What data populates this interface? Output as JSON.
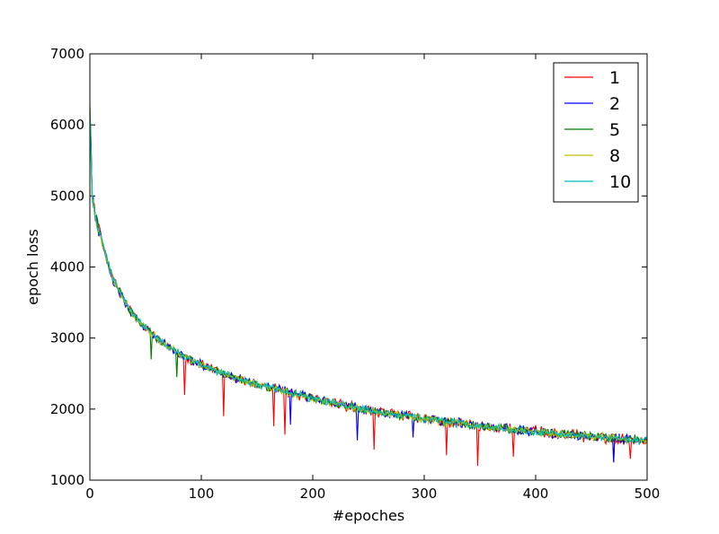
{
  "chart_data": {
    "type": "line",
    "xlabel": "#epoches",
    "ylabel": "epoch loss",
    "xlim": [
      0,
      500
    ],
    "ylim": [
      1000,
      7000
    ],
    "xticks": [
      0,
      100,
      200,
      300,
      400,
      500
    ],
    "yticks": [
      1000,
      2000,
      3000,
      4000,
      5000,
      6000,
      7000
    ],
    "grid": false,
    "legend_position": "top-right",
    "series": [
      {
        "name": "1",
        "color": "#ff0000",
        "x": [
          0,
          2,
          5,
          10,
          20,
          30,
          40,
          50,
          60,
          70,
          80,
          90,
          100,
          125,
          150,
          175,
          200,
          250,
          300,
          350,
          400,
          450,
          500
        ],
        "values": [
          6300,
          5000,
          4700,
          4400,
          3850,
          3550,
          3300,
          3150,
          3000,
          2880,
          2780,
          2700,
          2620,
          2470,
          2350,
          2250,
          2150,
          1980,
          1860,
          1760,
          1680,
          1610,
          1560
        ],
        "noise": 95,
        "dips": [
          [
            85,
            2200
          ],
          [
            120,
            1900
          ],
          [
            165,
            1760
          ],
          [
            175,
            1640
          ],
          [
            255,
            1430
          ],
          [
            320,
            1350
          ],
          [
            348,
            1200
          ],
          [
            380,
            1330
          ],
          [
            470,
            1260
          ],
          [
            485,
            1300
          ]
        ]
      },
      {
        "name": "2",
        "color": "#0000ff",
        "x": [
          0,
          2,
          5,
          10,
          20,
          30,
          40,
          50,
          60,
          70,
          80,
          90,
          100,
          125,
          150,
          175,
          200,
          250,
          300,
          350,
          400,
          450,
          500
        ],
        "values": [
          6300,
          5000,
          4700,
          4400,
          3850,
          3550,
          3300,
          3150,
          3000,
          2880,
          2780,
          2700,
          2620,
          2470,
          2350,
          2250,
          2150,
          1980,
          1860,
          1760,
          1680,
          1610,
          1560
        ],
        "noise": 80,
        "dips": [
          [
            180,
            1780
          ],
          [
            240,
            1560
          ],
          [
            290,
            1600
          ],
          [
            470,
            1250
          ]
        ]
      },
      {
        "name": "5",
        "color": "#008000",
        "x": [
          0,
          2,
          5,
          10,
          20,
          30,
          40,
          50,
          60,
          70,
          80,
          90,
          100,
          125,
          150,
          175,
          200,
          250,
          300,
          350,
          400,
          450,
          500
        ],
        "values": [
          6300,
          5000,
          4700,
          4400,
          3850,
          3550,
          3300,
          3150,
          3000,
          2880,
          2780,
          2700,
          2620,
          2470,
          2350,
          2250,
          2150,
          1980,
          1860,
          1760,
          1680,
          1610,
          1560
        ],
        "noise": 75,
        "dips": [
          [
            55,
            2700
          ],
          [
            78,
            2450
          ]
        ]
      },
      {
        "name": "8",
        "color": "#bfbf00",
        "x": [
          0,
          2,
          5,
          10,
          20,
          30,
          40,
          50,
          60,
          70,
          80,
          90,
          100,
          125,
          150,
          175,
          200,
          250,
          300,
          350,
          400,
          450,
          500
        ],
        "values": [
          6300,
          5000,
          4700,
          4400,
          3850,
          3550,
          3300,
          3150,
          3000,
          2880,
          2780,
          2700,
          2620,
          2470,
          2350,
          2250,
          2150,
          1980,
          1860,
          1760,
          1680,
          1610,
          1560
        ],
        "noise": 70,
        "dips": []
      },
      {
        "name": "10",
        "color": "#00bfbf",
        "x": [
          0,
          2,
          5,
          10,
          20,
          30,
          40,
          50,
          60,
          70,
          80,
          90,
          100,
          125,
          150,
          175,
          200,
          250,
          300,
          350,
          400,
          450,
          500
        ],
        "values": [
          6300,
          5000,
          4700,
          4400,
          3850,
          3550,
          3300,
          3150,
          3000,
          2880,
          2780,
          2700,
          2620,
          2470,
          2350,
          2250,
          2150,
          1980,
          1860,
          1760,
          1680,
          1610,
          1560
        ],
        "noise": 65,
        "dips": []
      }
    ]
  }
}
